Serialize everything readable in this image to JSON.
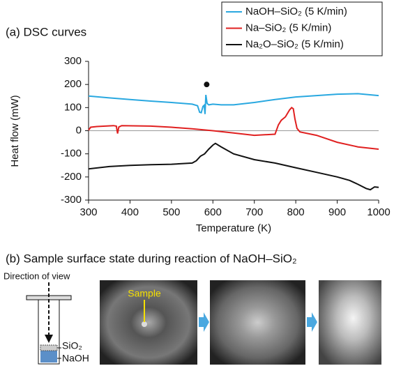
{
  "chart_data": {
    "type": "line",
    "title": "(a) DSC curves",
    "x_label": "Temperature (K)",
    "y_label": "Heat flow (mW)",
    "xlim": [
      300,
      1000
    ],
    "xticks": [
      300,
      400,
      500,
      600,
      700,
      800,
      900,
      1000
    ],
    "ylim": [
      -300,
      300
    ],
    "yticks": [
      -300,
      -200,
      -100,
      0,
      100,
      200,
      300
    ],
    "zero_line": true,
    "legend": "top-right",
    "marker_point": {
      "x": 585,
      "y": 200,
      "color": "#111111"
    },
    "series": [
      {
        "name": "NaOH–SiO₂ (5 K/min)",
        "color": "#29a8e0",
        "x": [
          300,
          350,
          400,
          450,
          500,
          550,
          563,
          568,
          572,
          576,
          579,
          581,
          583,
          586,
          590,
          600,
          620,
          650,
          700,
          750,
          800,
          850,
          900,
          950,
          1000
        ],
        "values": [
          150,
          142,
          135,
          128,
          122,
          115,
          108,
          80,
          78,
          105,
          110,
          72,
          155,
          118,
          112,
          115,
          112,
          112,
          122,
          135,
          146,
          152,
          158,
          160,
          152
        ]
      },
      {
        "name": "Na–SiO₂ (5 K/min)",
        "color": "#e02020",
        "x": [
          300,
          305,
          320,
          360,
          367,
          370,
          373,
          380,
          450,
          500,
          550,
          600,
          650,
          700,
          750,
          758,
          765,
          775,
          785,
          790,
          794,
          798,
          803,
          810,
          850,
          900,
          950,
          1000
        ],
        "values": [
          2,
          15,
          18,
          22,
          20,
          -12,
          16,
          22,
          20,
          15,
          8,
          0,
          -10,
          -20,
          -15,
          25,
          45,
          60,
          90,
          100,
          95,
          50,
          10,
          -5,
          -20,
          -50,
          -70,
          -80
        ]
      },
      {
        "name": "Na₂O–SiO₂ (5 K/min)",
        "color": "#111111",
        "x": [
          300,
          350,
          400,
          450,
          500,
          550,
          560,
          570,
          580,
          590,
          600,
          606,
          620,
          650,
          700,
          750,
          800,
          850,
          900,
          930,
          950,
          970,
          980,
          990,
          1000
        ],
        "values": [
          -165,
          -155,
          -150,
          -147,
          -145,
          -140,
          -130,
          -110,
          -100,
          -80,
          -62,
          -55,
          -70,
          -100,
          -125,
          -140,
          -160,
          -180,
          -200,
          -215,
          -232,
          -250,
          -255,
          -243,
          -245
        ]
      }
    ]
  },
  "panel_b": {
    "title": "(b) Sample surface state during reaction of NaOH–SiO₂",
    "direction_label": "Direction of view",
    "sample_label": "Sample",
    "layer_labels": [
      "SiO₂",
      "NaOH"
    ]
  }
}
